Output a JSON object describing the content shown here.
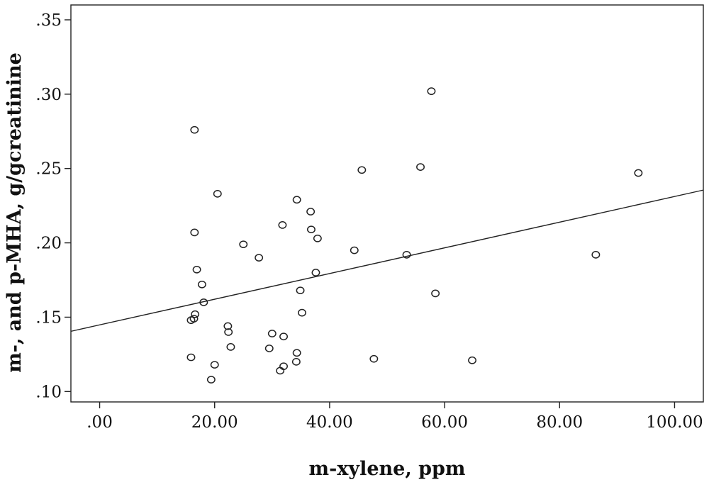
{
  "chart_data": {
    "type": "scatter",
    "xlabel": "m-xylene, ppm",
    "ylabel": "m-, and p-MHA, g/gcreatinine",
    "xlim": [
      -5,
      105
    ],
    "ylim": [
      0.093,
      0.36
    ],
    "xticks": [
      0,
      20,
      40,
      60,
      80,
      100
    ],
    "xtick_labels": [
      ".00",
      "20.00",
      "40.00",
      "60.00",
      "80.00",
      "100.00"
    ],
    "yticks": [
      0.1,
      0.15,
      0.2,
      0.25,
      0.3,
      0.35
    ],
    "ytick_labels": [
      ".10",
      ".15",
      ".20",
      ".25",
      ".30",
      ".35"
    ],
    "grid": false,
    "series": [
      {
        "points": [
          [
            16.5,
            0.276
          ],
          [
            57.7,
            0.302
          ],
          [
            45.6,
            0.249
          ],
          [
            55.8,
            0.251
          ],
          [
            93.7,
            0.247
          ],
          [
            20.5,
            0.233
          ],
          [
            34.3,
            0.229
          ],
          [
            36.7,
            0.221
          ],
          [
            31.8,
            0.212
          ],
          [
            16.5,
            0.207
          ],
          [
            36.8,
            0.209
          ],
          [
            37.9,
            0.203
          ],
          [
            25.0,
            0.199
          ],
          [
            44.3,
            0.195
          ],
          [
            27.7,
            0.19
          ],
          [
            53.4,
            0.192
          ],
          [
            86.3,
            0.192
          ],
          [
            16.9,
            0.182
          ],
          [
            37.6,
            0.18
          ],
          [
            17.8,
            0.172
          ],
          [
            34.9,
            0.168
          ],
          [
            58.4,
            0.166
          ],
          [
            18.1,
            0.16
          ],
          [
            35.2,
            0.153
          ],
          [
            16.6,
            0.152
          ],
          [
            15.9,
            0.148
          ],
          [
            16.4,
            0.149
          ],
          [
            22.3,
            0.144
          ],
          [
            22.4,
            0.14
          ],
          [
            30.0,
            0.139
          ],
          [
            32.0,
            0.137
          ],
          [
            22.8,
            0.13
          ],
          [
            29.5,
            0.129
          ],
          [
            34.3,
            0.126
          ],
          [
            15.9,
            0.123
          ],
          [
            47.7,
            0.122
          ],
          [
            64.8,
            0.121
          ],
          [
            34.2,
            0.12
          ],
          [
            20.0,
            0.118
          ],
          [
            32.0,
            0.117
          ],
          [
            31.4,
            0.114
          ],
          [
            19.4,
            0.108
          ]
        ]
      }
    ],
    "fit_line": {
      "x": [
        -5,
        105
      ],
      "y": [
        0.1405,
        0.2355
      ]
    }
  }
}
